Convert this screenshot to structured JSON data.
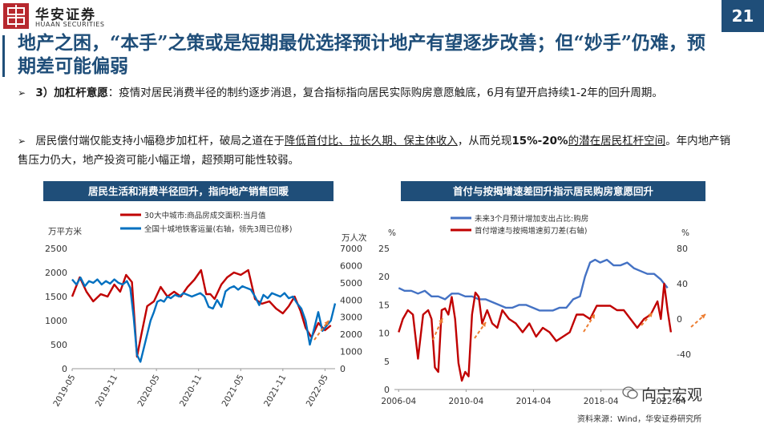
{
  "header": {
    "logo_cn": "华安证券",
    "logo_en": "HUAAN SECURITIES",
    "page_number": "21"
  },
  "title": "地产之困，“本手”之策或是短期最优选择预计地产有望逐步改善；但“妙手”仍难，预期差可能偏弱",
  "bullets": [
    {
      "lead": "3）加杠杆意愿",
      "text": "：疫情对居民消费半径的制约逐步消退，复合指标指向居民实际购房意愿触底，6月有望开启持续1-2年的回升周期。"
    },
    {
      "pre": "居民偿付端仅能支持小幅稳步加杠杆，破局之道在于",
      "u1": "降低首付比、拉长久期、保主体收入",
      "mid": "，从而兑现",
      "bold": "15%-20%",
      "u2": "的潜在居民杠杆空间",
      "post": "。年内地产销售压力仍大，地产投资可能小幅正增，超预期可能性较弱。"
    }
  ],
  "footer": {
    "source": "资料来源：Wind，华安证券研究所",
    "watermark": "向宁宏观"
  },
  "chart_data": [
    {
      "type": "line",
      "title": "居民生活和消费半径回升，指向地产销售回暖",
      "ylabel_left": "万平方米",
      "ylabel_right": "万人次",
      "ylim_left": [
        0,
        2500
      ],
      "yticks_left": [
        "0",
        "500",
        "1000",
        "1500",
        "2000",
        "2500"
      ],
      "ylim_right": [
        0,
        7000
      ],
      "yticks_right": [
        "0",
        "1000",
        "2000",
        "3000",
        "4000",
        "5000",
        "6000",
        "7000"
      ],
      "xlim": [
        2019.33,
        2022.45
      ],
      "xticks": [
        "2019-05",
        "2019-11",
        "2020-05",
        "2020-11",
        "2021-05",
        "2021-11",
        "2022-05"
      ],
      "xtick_values": [
        2019.33,
        2019.83,
        2020.33,
        2020.83,
        2021.33,
        2021.83,
        2022.33
      ],
      "legend_position": "top",
      "series": [
        {
          "name": "30大中城市:商品房成交面积:当月值",
          "color": "#c00000",
          "axis": "left",
          "x": [
            2019.33,
            2019.42,
            2019.5,
            2019.58,
            2019.67,
            2019.75,
            2019.83,
            2019.9,
            2019.97,
            2020.04,
            2020.1,
            2020.15,
            2020.22,
            2020.3,
            2020.38,
            2020.46,
            2020.54,
            2020.62,
            2020.7,
            2020.78,
            2020.86,
            2020.92,
            2020.97,
            2021.02,
            2021.1,
            2021.17,
            2021.25,
            2021.33,
            2021.42,
            2021.5,
            2021.58,
            2021.67,
            2021.75,
            2021.83,
            2021.9,
            2021.97,
            2022.04,
            2022.1,
            2022.17,
            2022.25,
            2022.33,
            2022.4
          ],
          "values": [
            1500,
            1900,
            1600,
            1400,
            1550,
            1500,
            1750,
            1600,
            1950,
            1800,
            250,
            700,
            1300,
            1400,
            1700,
            1500,
            1600,
            1500,
            1700,
            1850,
            2050,
            1550,
            1550,
            1450,
            1750,
            1900,
            2000,
            1950,
            2050,
            1450,
            1350,
            1400,
            1250,
            1150,
            1300,
            1500,
            1200,
            850,
            650,
            950,
            800,
            900
          ]
        },
        {
          "name": "全国十城地铁客运量(右轴，领先3周已位移)",
          "color": "#0070c0",
          "axis": "right",
          "x": [
            2019.33,
            2019.38,
            2019.43,
            2019.48,
            2019.53,
            2019.58,
            2019.63,
            2019.68,
            2019.73,
            2019.78,
            2019.83,
            2019.88,
            2019.93,
            2019.98,
            2020.02,
            2020.06,
            2020.1,
            2020.14,
            2020.18,
            2020.22,
            2020.26,
            2020.3,
            2020.34,
            2020.38,
            2020.42,
            2020.46,
            2020.5,
            2020.55,
            2020.6,
            2020.65,
            2020.7,
            2020.75,
            2020.8,
            2020.85,
            2020.9,
            2020.95,
            2021.0,
            2021.05,
            2021.1,
            2021.15,
            2021.2,
            2021.25,
            2021.3,
            2021.35,
            2021.4,
            2021.45,
            2021.5,
            2021.55,
            2021.6,
            2021.65,
            2021.7,
            2021.75,
            2021.8,
            2021.85,
            2021.9,
            2021.95,
            2022.0,
            2022.05,
            2022.1,
            2022.15,
            2022.2,
            2022.25,
            2022.3,
            2022.35,
            2022.4,
            2022.45
          ],
          "values": [
            5200,
            4900,
            5300,
            4800,
            5100,
            5000,
            5200,
            4900,
            5100,
            4950,
            5200,
            5000,
            4900,
            5100,
            4700,
            3000,
            800,
            400,
            1200,
            2000,
            2800,
            3300,
            3900,
            4000,
            3900,
            4200,
            4100,
            4300,
            4200,
            4400,
            4300,
            4200,
            4300,
            4400,
            4200,
            3600,
            3500,
            4000,
            3600,
            4500,
            4700,
            4800,
            4600,
            4800,
            4700,
            4600,
            4200,
            3700,
            4300,
            4100,
            4400,
            4300,
            4200,
            4400,
            4100,
            4200,
            3800,
            3500,
            2800,
            1400,
            2300,
            3300,
            2200,
            2500,
            2800,
            3800
          ]
        }
      ]
    },
    {
      "type": "line",
      "title": "首付与按揭增速差回升指示居民购房意愿回升",
      "ylabel_left": "%",
      "ylabel_right": "%",
      "ylim_left": [
        0,
        25
      ],
      "yticks_left": [
        "0",
        "5",
        "10",
        "15",
        "20",
        "25"
      ],
      "ylim_right": [
        -80,
        80
      ],
      "yticks_right": [
        "-40",
        "0",
        "40",
        "80"
      ],
      "xlim": [
        2006.0,
        2022.45
      ],
      "xticks": [
        "2006-04",
        "2010-04",
        "2014-04",
        "2018-04",
        "2022-04"
      ],
      "xtick_values": [
        2006.25,
        2010.25,
        2014.25,
        2018.25,
        2022.25
      ],
      "legend_position": "top",
      "series": [
        {
          "name": "未来3个月预计增加支出占比:购房",
          "color": "#4472c4",
          "axis": "left",
          "x": [
            2006.25,
            2006.6,
            2007.0,
            2007.4,
            2007.8,
            2008.2,
            2008.6,
            2009.0,
            2009.4,
            2009.8,
            2010.2,
            2010.6,
            2011.0,
            2011.4,
            2011.8,
            2012.2,
            2012.6,
            2013.0,
            2013.4,
            2013.8,
            2014.2,
            2014.6,
            2015.0,
            2015.4,
            2015.8,
            2016.2,
            2016.6,
            2017.0,
            2017.3,
            2017.6,
            2017.9,
            2018.2,
            2018.6,
            2019.0,
            2019.4,
            2019.8,
            2020.2,
            2020.6,
            2021.0,
            2021.4,
            2021.8,
            2022.2
          ],
          "values": [
            18.0,
            17.5,
            17.5,
            17.0,
            17.5,
            16.5,
            16.5,
            16.0,
            17.0,
            17.0,
            16.5,
            16.5,
            16.0,
            16.0,
            15.5,
            15.0,
            14.5,
            14.5,
            15.0,
            15.0,
            14.5,
            14.0,
            14.0,
            14.0,
            14.5,
            14.5,
            16.0,
            16.5,
            20.0,
            22.5,
            23.0,
            22.5,
            23.0,
            22.0,
            22.0,
            22.5,
            21.5,
            21.0,
            20.5,
            20.5,
            19.5,
            18.0
          ]
        },
        {
          "name": "首付增速与按揭增速剪刀差(右轴)",
          "color": "#c00000",
          "axis": "right",
          "x": [
            2006.25,
            2006.5,
            2006.8,
            2007.1,
            2007.4,
            2007.7,
            2008.0,
            2008.2,
            2008.4,
            2008.6,
            2008.8,
            2009.0,
            2009.2,
            2009.4,
            2009.6,
            2009.8,
            2010.0,
            2010.2,
            2010.4,
            2010.6,
            2010.8,
            2011.0,
            2011.2,
            2011.5,
            2011.8,
            2012.1,
            2012.4,
            2012.8,
            2013.2,
            2013.6,
            2014.0,
            2014.4,
            2014.8,
            2015.2,
            2015.6,
            2016.0,
            2016.4,
            2016.8,
            2017.2,
            2017.6,
            2018.0,
            2018.4,
            2018.8,
            2019.2,
            2019.6,
            2020.0,
            2020.4,
            2020.8,
            2021.2,
            2021.6,
            2021.8,
            2022.0,
            2022.2,
            2022.4
          ],
          "values": [
            -15,
            0,
            10,
            5,
            -45,
            5,
            10,
            0,
            -55,
            -60,
            10,
            12,
            5,
            25,
            0,
            -50,
            -70,
            -60,
            -65,
            5,
            30,
            25,
            -5,
            10,
            -5,
            -10,
            10,
            0,
            -5,
            -15,
            -5,
            -20,
            -10,
            -15,
            -25,
            -20,
            -15,
            5,
            5,
            0,
            15,
            15,
            15,
            10,
            10,
            0,
            -10,
            0,
            5,
            20,
            0,
            40,
            10,
            -15
          ]
        }
      ],
      "annotation_source": ""
    }
  ]
}
